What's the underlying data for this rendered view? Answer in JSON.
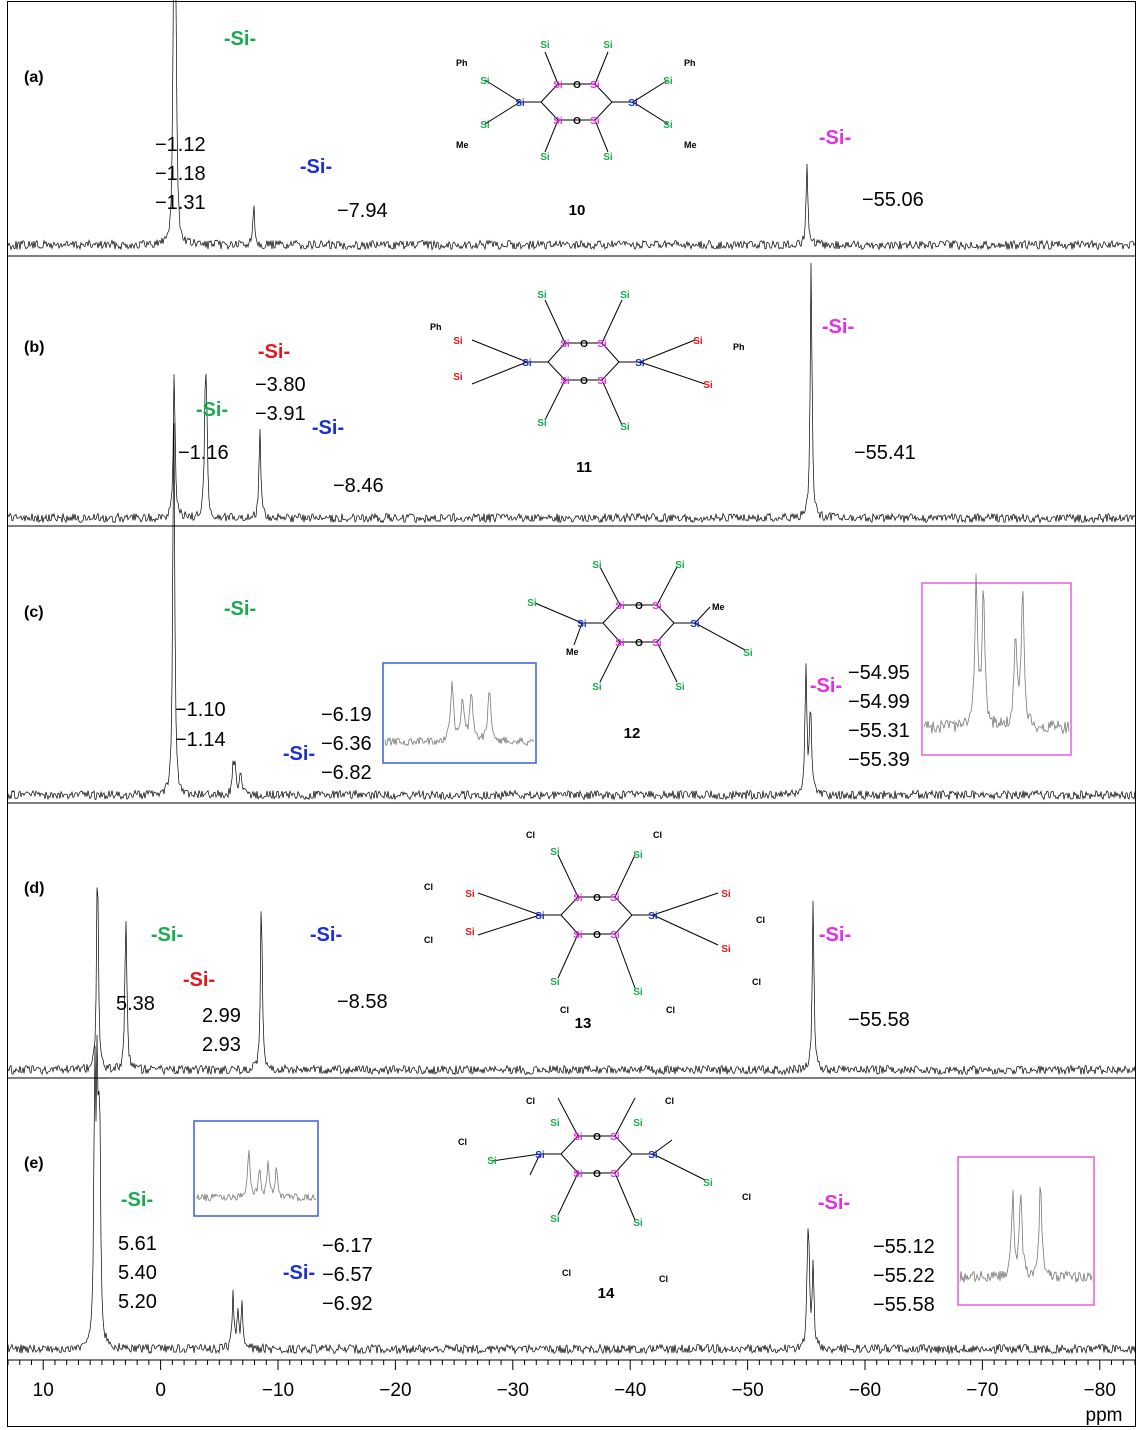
{
  "chart_data": {
    "type": "line",
    "subtype": "stacked 29Si NMR spectra",
    "xlabel": "ppm",
    "xlim": [
      13,
      -83
    ],
    "x_axis_reversed": true,
    "ticks": [
      10,
      0,
      -10,
      -20,
      -30,
      -40,
      -50,
      -60,
      -70,
      -80
    ],
    "tick_labels": [
      "10",
      "0",
      "−10",
      "−20",
      "−30",
      "−40",
      "−50",
      "−60",
      "−70",
      "−80"
    ],
    "colors": {
      "green": "#1aaa50",
      "blue": "#1a2fd6",
      "red": "#e8141c",
      "magenta": "#e62ee6",
      "inset_blue": "#3a5fd8",
      "inset_magenta": "#e85ce0"
    },
    "panels": [
      {
        "label": "(a)",
        "compound": "10",
        "peaks": [
          {
            "ppm": -1.12,
            "height": 0.95
          },
          {
            "ppm": -1.18,
            "height": 0.9
          },
          {
            "ppm": -1.31,
            "height": 0.8
          },
          {
            "ppm": -7.94,
            "height": 0.22
          },
          {
            "ppm": -55.06,
            "height": 0.42
          }
        ],
        "annotations": [
          {
            "si": "-Si-",
            "color": "green",
            "shifts": [
              "−1.12",
              "−1.18",
              "−1.31"
            ]
          },
          {
            "si": "-Si-",
            "color": "blue",
            "shifts": [
              "−7.94"
            ]
          },
          {
            "si": "-Si-",
            "color": "magenta",
            "shifts": [
              "−55.06"
            ]
          }
        ]
      },
      {
        "label": "(b)",
        "compound": "11",
        "peaks": [
          {
            "ppm": -1.16,
            "height": 0.55
          },
          {
            "ppm": -3.8,
            "height": 0.38
          },
          {
            "ppm": -3.91,
            "height": 0.36
          },
          {
            "ppm": -8.46,
            "height": 0.33
          },
          {
            "ppm": -55.41,
            "height": 0.95
          }
        ],
        "annotations": [
          {
            "si": "-Si-",
            "color": "green",
            "shifts": [
              "−1.16"
            ]
          },
          {
            "si": "-Si-",
            "color": "red",
            "shifts": [
              "−3.80",
              "−3.91"
            ]
          },
          {
            "si": "-Si-",
            "color": "blue",
            "shifts": [
              "−8.46"
            ]
          },
          {
            "si": "-Si-",
            "color": "magenta",
            "shifts": [
              "−55.41"
            ]
          }
        ]
      },
      {
        "label": "(c)",
        "compound": "12",
        "peaks": [
          {
            "ppm": -1.1,
            "height": 0.9
          },
          {
            "ppm": -1.14,
            "height": 0.85
          },
          {
            "ppm": -6.19,
            "height": 0.12
          },
          {
            "ppm": -6.36,
            "height": 0.13
          },
          {
            "ppm": -6.82,
            "height": 0.1
          },
          {
            "ppm": -54.95,
            "height": 0.3
          },
          {
            "ppm": -54.99,
            "height": 0.26
          },
          {
            "ppm": -55.31,
            "height": 0.2
          },
          {
            "ppm": -55.39,
            "height": 0.24
          }
        ],
        "annotations": [
          {
            "si": "-Si-",
            "color": "green",
            "shifts": [
              "−1.10",
              "−1.14"
            ]
          },
          {
            "si": "-Si-",
            "color": "blue",
            "shifts": [
              "−6.19",
              "−6.36",
              "−6.82"
            ]
          },
          {
            "si": "-Si-",
            "color": "magenta",
            "shifts": [
              "−54.95",
              "−54.99",
              "−55.31",
              "−55.39"
            ]
          }
        ]
      },
      {
        "label": "(d)",
        "compound": "13",
        "peaks": [
          {
            "ppm": 5.38,
            "height": 0.88
          },
          {
            "ppm": 2.99,
            "height": 0.35
          },
          {
            "ppm": 2.93,
            "height": 0.33
          },
          {
            "ppm": -8.58,
            "height": 0.72
          },
          {
            "ppm": -55.58,
            "height": 0.68
          }
        ],
        "annotations": [
          {
            "si": "-Si-",
            "color": "green",
            "shifts": [
              "5.38"
            ]
          },
          {
            "si": "-Si-",
            "color": "red",
            "shifts": [
              "2.99",
              "2.93"
            ]
          },
          {
            "si": "-Si-",
            "color": "blue",
            "shifts": [
              "−8.58"
            ]
          },
          {
            "si": "-Si-",
            "color": "magenta",
            "shifts": [
              "−55.58"
            ]
          }
        ]
      },
      {
        "label": "(e)",
        "compound": "14",
        "peaks": [
          {
            "ppm": 5.61,
            "height": 0.95
          },
          {
            "ppm": 5.4,
            "height": 0.9
          },
          {
            "ppm": 5.2,
            "height": 0.85
          },
          {
            "ppm": -6.17,
            "height": 0.2
          },
          {
            "ppm": -6.57,
            "height": 0.15
          },
          {
            "ppm": -6.92,
            "height": 0.17
          },
          {
            "ppm": -55.12,
            "height": 0.3
          },
          {
            "ppm": -55.22,
            "height": 0.26
          },
          {
            "ppm": -55.58,
            "height": 0.32
          }
        ],
        "annotations": [
          {
            "si": "-Si-",
            "color": "green",
            "shifts": [
              "5.61",
              "5.40",
              "5.20"
            ]
          },
          {
            "si": "-Si-",
            "color": "blue",
            "shifts": [
              "−6.17",
              "−6.57",
              "−6.92"
            ]
          },
          {
            "si": "-Si-",
            "color": "magenta",
            "shifts": [
              "−55.12",
              "−55.22",
              "−55.58"
            ]
          }
        ]
      }
    ]
  },
  "structure": {
    "atom_labels": {
      "si": "Si",
      "o": "O",
      "me": "Me",
      "ph": "Ph",
      "cl": "Cl"
    }
  }
}
